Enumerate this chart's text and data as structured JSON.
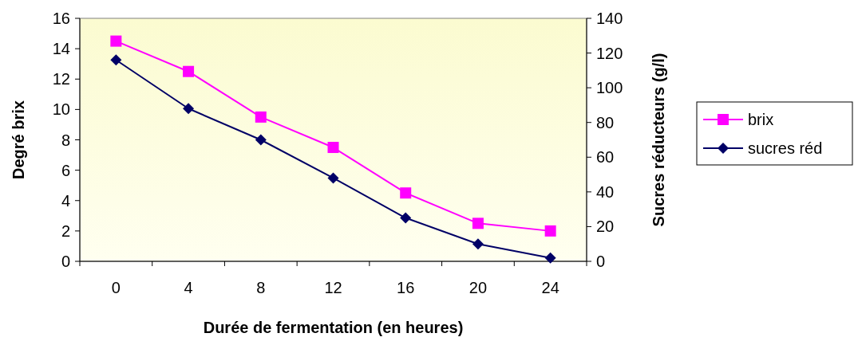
{
  "chart_data": {
    "type": "line",
    "xlabel": "Durée de fermentation (en heures)",
    "ylabel": "Degré brix",
    "y2label": "Sucres réducteurs (g/l)",
    "categories": [
      "0",
      "4",
      "8",
      "12",
      "16",
      "20",
      "24"
    ],
    "series": [
      {
        "name": "brix",
        "color": "#ff00ff",
        "marker": "square",
        "values": [
          14.5,
          12.5,
          9.5,
          7.5,
          4.5,
          2.5,
          2.0
        ]
      },
      {
        "name": "sucres réd",
        "color": "#000066",
        "marker": "diamond",
        "axis": "y2",
        "values": [
          116,
          88,
          70,
          48,
          25,
          10,
          2
        ]
      }
    ],
    "ylim": [
      0,
      16
    ],
    "yticks": [
      0,
      2,
      4,
      6,
      8,
      10,
      12,
      14,
      16
    ],
    "y2lim": [
      0,
      140
    ],
    "y2ticks": [
      0,
      20,
      40,
      60,
      80,
      100,
      120,
      140
    ],
    "grid": false,
    "legend": "right",
    "line_style": "solid"
  }
}
